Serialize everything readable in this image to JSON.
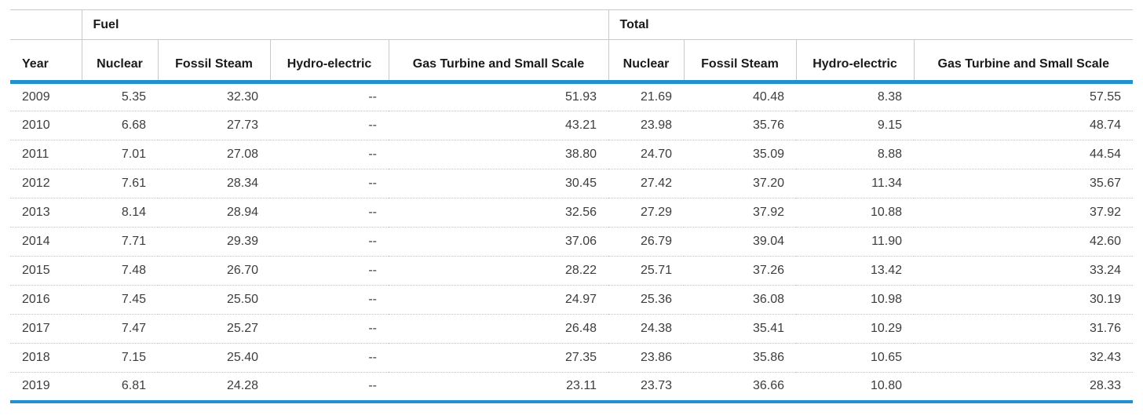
{
  "colors": {
    "accent_blue": "#2191cf",
    "line_gray": "#c9c9c9",
    "dotted_gray": "#c2c2c2",
    "header_text": "#1a1a1a",
    "cell_text": "#3d3d3d"
  },
  "chart_data": {
    "type": "table",
    "groups": [
      {
        "label": "Fuel",
        "columns": 4
      },
      {
        "label": "Total",
        "columns": 4
      }
    ],
    "columns": [
      "Year",
      "Nuclear",
      "Fossil Steam",
      "Hydro-electric",
      "Gas Turbine and Small Scale",
      "Nuclear",
      "Fossil Steam",
      "Hydro-electric",
      "Gas Turbine and Small Scale"
    ],
    "null_marker": "--",
    "rows": [
      [
        "2009",
        "5.35",
        "32.30",
        "--",
        "51.93",
        "21.69",
        "40.48",
        "8.38",
        "57.55"
      ],
      [
        "2010",
        "6.68",
        "27.73",
        "--",
        "43.21",
        "23.98",
        "35.76",
        "9.15",
        "48.74"
      ],
      [
        "2011",
        "7.01",
        "27.08",
        "--",
        "38.80",
        "24.70",
        "35.09",
        "8.88",
        "44.54"
      ],
      [
        "2012",
        "7.61",
        "28.34",
        "--",
        "30.45",
        "27.42",
        "37.20",
        "11.34",
        "35.67"
      ],
      [
        "2013",
        "8.14",
        "28.94",
        "--",
        "32.56",
        "27.29",
        "37.92",
        "10.88",
        "37.92"
      ],
      [
        "2014",
        "7.71",
        "29.39",
        "--",
        "37.06",
        "26.79",
        "39.04",
        "11.90",
        "42.60"
      ],
      [
        "2015",
        "7.48",
        "26.70",
        "--",
        "28.22",
        "25.71",
        "37.26",
        "13.42",
        "33.24"
      ],
      [
        "2016",
        "7.45",
        "25.50",
        "--",
        "24.97",
        "25.36",
        "36.08",
        "10.98",
        "30.19"
      ],
      [
        "2017",
        "7.47",
        "25.27",
        "--",
        "26.48",
        "24.38",
        "35.41",
        "10.29",
        "31.76"
      ],
      [
        "2018",
        "7.15",
        "25.40",
        "--",
        "27.35",
        "23.86",
        "35.86",
        "10.65",
        "32.43"
      ],
      [
        "2019",
        "6.81",
        "24.28",
        "--",
        "23.11",
        "23.73",
        "36.66",
        "10.80",
        "28.33"
      ]
    ]
  }
}
